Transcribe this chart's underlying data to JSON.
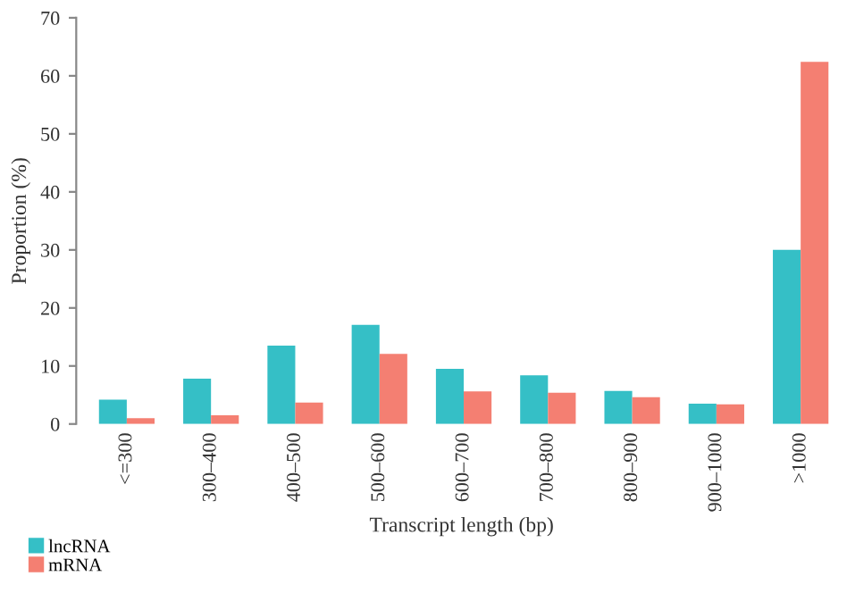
{
  "chart_data": {
    "type": "bar",
    "xlabel": "Transcript length (bp)",
    "ylabel": "Proportion (%)",
    "categories": [
      "<=300",
      "300–400",
      "400–500",
      "500–600",
      "600–700",
      "700–800",
      "800–900",
      "900–1000",
      ">1000"
    ],
    "series": [
      {
        "name": "lncRNA",
        "color": "#35bfc6",
        "values": [
          4.2,
          7.8,
          13.5,
          17.1,
          9.5,
          8.4,
          5.7,
          3.5,
          30.0
        ]
      },
      {
        "name": "mRNA",
        "color": "#f47f72",
        "values": [
          1.0,
          1.5,
          3.7,
          12.1,
          5.6,
          5.4,
          4.6,
          3.4,
          62.4
        ]
      }
    ],
    "ylim": [
      0,
      70
    ],
    "yticks": [
      0,
      10,
      20,
      30,
      40,
      50,
      60,
      70
    ],
    "grid": false,
    "legend": "bottom left"
  }
}
